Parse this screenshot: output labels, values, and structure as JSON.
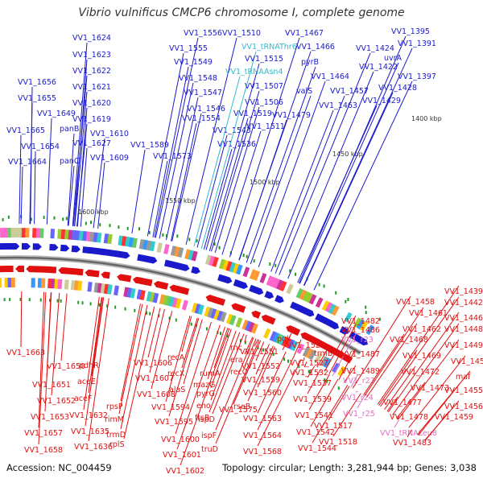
{
  "title": "Vibrio vulnificus CMCP6 chromosome I, complete genome",
  "footer": {
    "accession": "Accession: NC_004459",
    "summary": "Topology: circular; Length: 3,281,944 bp; Genes: 3,038"
  },
  "colors": {
    "forward": "#1a1acc",
    "reverse": "#e01010",
    "trna": "#33bbcc",
    "rrna": "#e070c0",
    "backbone": "#999999"
  },
  "scale_labels": [
    "1400 kbp",
    "1450 kbp",
    "1500 kbp",
    "1550 kbp",
    "1600 kbp"
  ],
  "top_labels": [
    {
      "text": "VV1_1624",
      "type": "gene"
    },
    {
      "text": "VV1_1623",
      "type": "gene"
    },
    {
      "text": "VV1_1622",
      "type": "gene"
    },
    {
      "text": "VV1_1621",
      "type": "gene"
    },
    {
      "text": "VV1_1620",
      "type": "gene"
    },
    {
      "text": "VV1_1619",
      "type": "gene"
    },
    {
      "text": "VV1_1610",
      "type": "gene"
    },
    {
      "text": "VV1_1627",
      "type": "gene"
    },
    {
      "text": "VV1_1609",
      "type": "gene"
    },
    {
      "text": "VV1_1656",
      "type": "gene"
    },
    {
      "text": "VV1_1655",
      "type": "gene"
    },
    {
      "text": "VV1_1649",
      "type": "gene"
    },
    {
      "text": "panB",
      "type": "gene"
    },
    {
      "text": "VV1_1665",
      "type": "gene"
    },
    {
      "text": "VV1_1654",
      "type": "gene"
    },
    {
      "text": "panC",
      "type": "gene"
    },
    {
      "text": "VV1_1664",
      "type": "gene"
    },
    {
      "text": "VV1_1589",
      "type": "gene"
    },
    {
      "text": "VV1_1573",
      "type": "gene"
    },
    {
      "text": "VV1_1556",
      "type": "gene"
    },
    {
      "text": "VV1_1555",
      "type": "gene"
    },
    {
      "text": "VV1_1549",
      "type": "gene"
    },
    {
      "text": "VV1_1548",
      "type": "gene"
    },
    {
      "text": "VV1_1547",
      "type": "gene"
    },
    {
      "text": "VV1_1546",
      "type": "gene"
    },
    {
      "text": "VV1_1554",
      "type": "gene"
    },
    {
      "text": "VV1_1543",
      "type": "gene"
    },
    {
      "text": "VV1_1536",
      "type": "gene"
    },
    {
      "text": "VV1_1510",
      "type": "gene"
    },
    {
      "text": "VV1_tRNAThr6",
      "type": "trna"
    },
    {
      "text": "VV1_1515",
      "type": "gene"
    },
    {
      "text": "VV1_tRNAAsn4",
      "type": "trna"
    },
    {
      "text": "VV1_1507",
      "type": "gene"
    },
    {
      "text": "VV1_1506",
      "type": "gene"
    },
    {
      "text": "VV1_1519",
      "type": "gene"
    },
    {
      "text": "VV1_1511",
      "type": "gene"
    },
    {
      "text": "VV1_1467",
      "type": "gene"
    },
    {
      "text": "VV1_1466",
      "type": "gene"
    },
    {
      "text": "pyrB",
      "type": "gene"
    },
    {
      "text": "VV1_1464",
      "type": "gene"
    },
    {
      "text": "valS",
      "type": "gene"
    },
    {
      "text": "VV1_1479",
      "type": "gene"
    },
    {
      "text": "VV1_1463",
      "type": "gene"
    },
    {
      "text": "VV1_1457",
      "type": "gene"
    },
    {
      "text": "uvrA",
      "type": "gene"
    },
    {
      "text": "VV1_1424",
      "type": "gene"
    },
    {
      "text": "VV1_1395",
      "type": "gene"
    },
    {
      "text": "VV1_1391",
      "type": "gene"
    },
    {
      "text": "VV1_1422",
      "type": "gene"
    },
    {
      "text": "VV1_1428",
      "type": "gene"
    },
    {
      "text": "VV1_1397",
      "type": "gene"
    },
    {
      "text": "VV1_1429",
      "type": "gene"
    }
  ],
  "bottom_labels": [
    {
      "text": "VV1_1663",
      "type": "gene"
    },
    {
      "text": "VV1_1650",
      "type": "gene"
    },
    {
      "text": "VV1_1651",
      "type": "gene"
    },
    {
      "text": "VV1_1652",
      "type": "gene"
    },
    {
      "text": "VV1_1653",
      "type": "gene"
    },
    {
      "text": "VV1_1657",
      "type": "gene"
    },
    {
      "text": "VV1_1658",
      "type": "gene"
    },
    {
      "text": "pdhR",
      "type": "gene"
    },
    {
      "text": "aceE",
      "type": "gene"
    },
    {
      "text": "aceF",
      "type": "gene"
    },
    {
      "text": "VV1_1632",
      "type": "gene"
    },
    {
      "text": "VV1_1635",
      "type": "gene"
    },
    {
      "text": "VV1_1636",
      "type": "gene"
    },
    {
      "text": "VV1_1606",
      "type": "gene"
    },
    {
      "text": "VV1_1607",
      "type": "gene"
    },
    {
      "text": "VV1_1608",
      "type": "gene"
    },
    {
      "text": "rpsP",
      "type": "gene"
    },
    {
      "text": "rimM",
      "type": "gene"
    },
    {
      "text": "trmD",
      "type": "gene"
    },
    {
      "text": "rplS",
      "type": "gene"
    },
    {
      "text": "recA",
      "type": "gene"
    },
    {
      "text": "recX",
      "type": "gene"
    },
    {
      "text": "alaS",
      "type": "gene"
    },
    {
      "text": "VV1_1594",
      "type": "gene"
    },
    {
      "text": "VV1_1595",
      "type": "gene"
    },
    {
      "text": "VV1_1600",
      "type": "gene"
    },
    {
      "text": "VV1_1601",
      "type": "gene"
    },
    {
      "text": "VV1_1602",
      "type": "gene"
    },
    {
      "text": "rumA",
      "type": "gene"
    },
    {
      "text": "mazG",
      "type": "gene"
    },
    {
      "text": "pyrG",
      "type": "gene"
    },
    {
      "text": "eno",
      "type": "gene"
    },
    {
      "text": "ftsB",
      "type": "gene"
    },
    {
      "text": "VV1_1575",
      "type": "gene"
    },
    {
      "text": "ispD",
      "type": "gene"
    },
    {
      "text": "ispF",
      "type": "gene"
    },
    {
      "text": "truD",
      "type": "gene"
    },
    {
      "text": "rnc",
      "type": "gene"
    },
    {
      "text": "era",
      "type": "gene"
    },
    {
      "text": "recO",
      "type": "gene"
    },
    {
      "text": "VV1_1551",
      "type": "gene"
    },
    {
      "text": "VV1_1552",
      "type": "gene"
    },
    {
      "text": "VV1_1559",
      "type": "gene"
    },
    {
      "text": "VV1_1560",
      "type": "gene"
    },
    {
      "text": "rseB",
      "type": "gene"
    },
    {
      "text": "VV1_1563",
      "type": "gene"
    },
    {
      "text": "VV1_1564",
      "type": "gene"
    },
    {
      "text": "VV1_1568",
      "type": "gene"
    },
    {
      "text": "pgk",
      "type": "gene"
    },
    {
      "text": "VV1_1526",
      "type": "gene"
    },
    {
      "text": "VV1_1527",
      "type": "gene"
    },
    {
      "text": "VV1_1532",
      "type": "gene"
    },
    {
      "text": "VV1_1537",
      "type": "gene"
    },
    {
      "text": "VV1_1539",
      "type": "gene"
    },
    {
      "text": "VV1_1541",
      "type": "gene"
    },
    {
      "text": "VV1_1542",
      "type": "gene"
    },
    {
      "text": "VV1_1544",
      "type": "gene"
    },
    {
      "text": "trmB",
      "type": "gene"
    },
    {
      "text": "VV1_1517",
      "type": "gene"
    },
    {
      "text": "VV1_1518",
      "type": "gene"
    },
    {
      "text": "VV1_1482",
      "type": "gene"
    },
    {
      "text": "VV1_1486",
      "type": "gene"
    },
    {
      "text": "VV1_r23",
      "type": "rrna"
    },
    {
      "text": "VV1_1487",
      "type": "gene"
    },
    {
      "text": "VV1_1489",
      "type": "gene"
    },
    {
      "text": "VV1_r23",
      "type": "rrna"
    },
    {
      "text": "VV1_r24",
      "type": "rrna"
    },
    {
      "text": "VV1_r25",
      "type": "rrna"
    },
    {
      "text": "VV1_tRNALeu8",
      "type": "rrna"
    },
    {
      "text": "VV1_1483",
      "type": "gene"
    },
    {
      "text": "VV1_1439",
      "type": "gene"
    },
    {
      "text": "VV1_1442",
      "type": "gene"
    },
    {
      "text": "VV1_1458",
      "type": "gene"
    },
    {
      "text": "VV1_1461",
      "type": "gene"
    },
    {
      "text": "VV1_1446",
      "type": "gene"
    },
    {
      "text": "VV1_1448",
      "type": "gene"
    },
    {
      "text": "VV1_1462",
      "type": "gene"
    },
    {
      "text": "VV1_1468",
      "type": "gene"
    },
    {
      "text": "VV1_1449",
      "type": "gene"
    },
    {
      "text": "VV1_1469",
      "type": "gene"
    },
    {
      "text": "VV1_1451",
      "type": "gene"
    },
    {
      "text": "VV1_1472",
      "type": "gene"
    },
    {
      "text": "maf",
      "type": "gene"
    },
    {
      "text": "VV1_1473",
      "type": "gene"
    },
    {
      "text": "VV1_1455",
      "type": "gene"
    },
    {
      "text": "VV1_1477",
      "type": "gene"
    },
    {
      "text": "VV1_1456",
      "type": "gene"
    },
    {
      "text": "VV1_1478",
      "type": "gene"
    },
    {
      "text": "VV1_1459",
      "type": "gene"
    }
  ]
}
